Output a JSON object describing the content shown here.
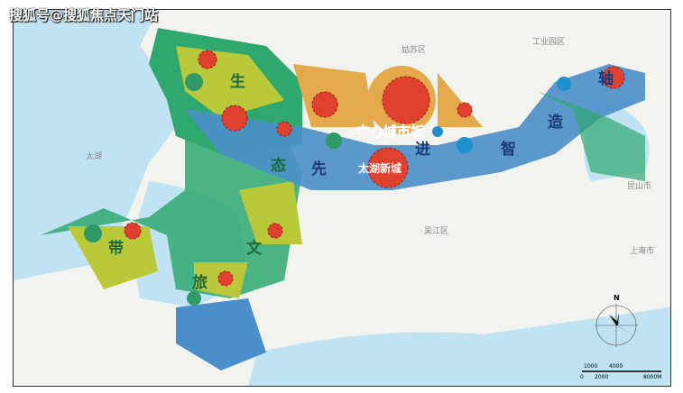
{
  "watermark": "搜狐号@搜狐焦点天门站",
  "districts": {
    "gusu": "姑苏区",
    "sip": "工业园区",
    "kunshan": "昆山市",
    "shanghai": "上海市",
    "wujiang": "吴江区",
    "taihu": "太湖"
  },
  "axis_chars": [
    "生",
    "态",
    "先",
    "进",
    "智",
    "造",
    "轴"
  ],
  "belt_chars": [
    "带",
    "文",
    "旅"
  ],
  "zones": {
    "center": "中心城市板",
    "taihu_new": "太湖新城"
  },
  "compass": {
    "north": "N"
  },
  "scale": {
    "top": [
      "1000",
      "4000"
    ],
    "bottom": [
      "0",
      "2000",
      "8000M"
    ]
  },
  "colors": {
    "water": "#bfe3f3",
    "green": "#2fa870",
    "yellow": "#b9c93a",
    "blue": "#4a8fc9",
    "orange": "#e3a94a",
    "red": "#e0412f"
  }
}
